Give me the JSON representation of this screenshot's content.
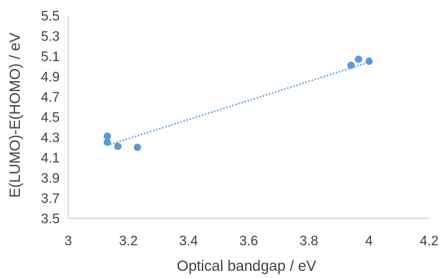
{
  "chart_data": {
    "type": "scatter",
    "xlabel": "Optical bandgap  / eV",
    "ylabel": "E(LUMO)-E(HOMO) / eV",
    "xlim": [
      3,
      4.2
    ],
    "ylim": [
      3.5,
      5.5
    ],
    "x_ticks": [
      "3",
      "3.2",
      "3.4",
      "3.6",
      "3.8",
      "4",
      "4.2"
    ],
    "y_ticks": [
      "3.5",
      "3.7",
      "3.9",
      "4.1",
      "4.3",
      "4.5",
      "4.7",
      "4.9",
      "5.1",
      "5.3",
      "5.5"
    ],
    "grid": false,
    "legend": "none",
    "series": [
      {
        "points": [
          {
            "x": 3.13,
            "y": 4.31
          },
          {
            "x": 3.13,
            "y": 4.25
          },
          {
            "x": 3.165,
            "y": 4.21
          },
          {
            "x": 3.23,
            "y": 4.2
          },
          {
            "x": 3.94,
            "y": 5.01
          },
          {
            "x": 3.965,
            "y": 5.07
          },
          {
            "x": 4.0,
            "y": 5.05
          }
        ],
        "color": "#5B9BD5"
      }
    ],
    "trendline": {
      "type": "linear",
      "style": "dotted",
      "color": "#5B9BD5",
      "x_range": [
        3.13,
        4.0
      ],
      "y_range": [
        4.22,
        5.04
      ]
    }
  }
}
